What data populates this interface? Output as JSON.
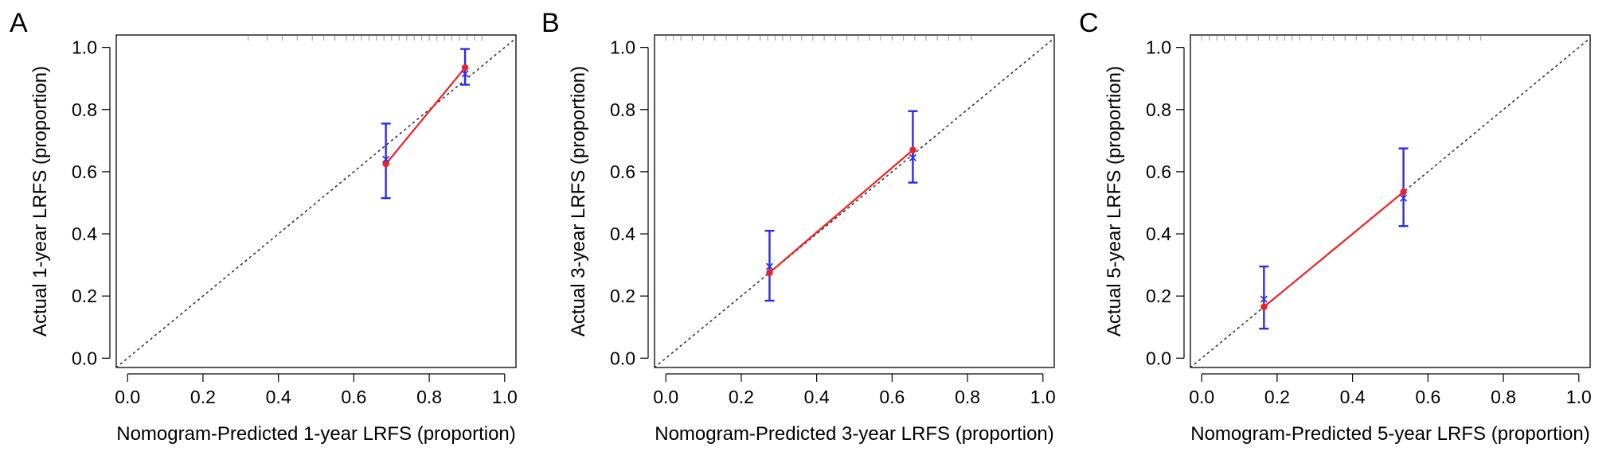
{
  "chart_data": [
    {
      "panel_label": "A",
      "type": "scatter",
      "xlabel": "Nomogram-Predicted 1-year LRFS (proportion)",
      "ylabel": "Actual 1-year LRFS (proportion)",
      "xlim": [
        -0.03,
        1.03
      ],
      "ylim": [
        -0.03,
        1.04
      ],
      "xticks": [
        "0.0",
        "0.2",
        "0.4",
        "0.6",
        "0.8",
        "1.0"
      ],
      "yticks": [
        "0.0",
        "0.2",
        "0.4",
        "0.6",
        "0.8",
        "1.0"
      ],
      "reference_line": {
        "style": "dotted",
        "from": [
          -0.03,
          -0.03
        ],
        "to": [
          1.03,
          1.03
        ],
        "color": "#333333"
      },
      "observed": {
        "color": "#ee2222",
        "x": [
          0.685,
          0.895
        ],
        "y": [
          0.625,
          0.935
        ]
      },
      "error_bars": {
        "color": "#2a2aee",
        "x": [
          0.685,
          0.895
        ],
        "lower": [
          0.515,
          0.88
        ],
        "upper": [
          0.755,
          0.995
        ]
      },
      "bias_corrected": {
        "marker": "x",
        "color": "#2a2aee",
        "x": [
          0.685,
          0.895
        ],
        "y": [
          0.64,
          0.915
        ]
      },
      "rug": [
        0.32,
        0.37,
        0.41,
        0.45,
        0.49,
        0.52,
        0.55,
        0.58,
        0.6,
        0.62,
        0.64,
        0.66,
        0.68,
        0.7,
        0.72,
        0.74,
        0.76,
        0.78,
        0.8,
        0.82,
        0.84,
        0.86,
        0.88,
        0.9,
        0.92,
        0.94
      ]
    },
    {
      "panel_label": "B",
      "type": "scatter",
      "xlabel": "Nomogram-Predicted 3-year LRFS (proportion)",
      "ylabel": "Actual 3-year LRFS (proportion)",
      "xlim": [
        -0.03,
        1.03
      ],
      "ylim": [
        -0.03,
        1.04
      ],
      "xticks": [
        "0.0",
        "0.2",
        "0.4",
        "0.6",
        "0.8",
        "1.0"
      ],
      "yticks": [
        "0.0",
        "0.2",
        "0.4",
        "0.6",
        "0.8",
        "1.0"
      ],
      "reference_line": {
        "style": "dotted",
        "from": [
          -0.03,
          -0.03
        ],
        "to": [
          1.03,
          1.03
        ],
        "color": "#333333"
      },
      "observed": {
        "color": "#ee2222",
        "x": [
          0.275,
          0.655
        ],
        "y": [
          0.275,
          0.67
        ]
      },
      "error_bars": {
        "color": "#2a2aee",
        "x": [
          0.275,
          0.655
        ],
        "lower": [
          0.185,
          0.565
        ],
        "upper": [
          0.41,
          0.795
        ]
      },
      "bias_corrected": {
        "marker": "x",
        "color": "#2a2aee",
        "x": [
          0.275,
          0.655
        ],
        "y": [
          0.295,
          0.645
        ]
      },
      "rug": [
        0.0,
        0.02,
        0.04,
        0.07,
        0.1,
        0.13,
        0.16,
        0.19,
        0.22,
        0.25,
        0.27,
        0.29,
        0.31,
        0.33,
        0.36,
        0.39,
        0.42,
        0.45,
        0.48,
        0.51,
        0.54,
        0.57,
        0.6,
        0.63,
        0.66,
        0.69,
        0.72,
        0.75,
        0.78,
        0.81
      ]
    },
    {
      "panel_label": "C",
      "type": "scatter",
      "xlabel": "Nomogram-Predicted 5-year LRFS (proportion)",
      "ylabel": "Actual 5-year LRFS (proportion)",
      "xlim": [
        -0.03,
        1.03
      ],
      "ylim": [
        -0.03,
        1.04
      ],
      "xticks": [
        "0.0",
        "0.2",
        "0.4",
        "0.6",
        "0.8",
        "1.0"
      ],
      "yticks": [
        "0.0",
        "0.2",
        "0.4",
        "0.6",
        "0.8",
        "1.0"
      ],
      "reference_line": {
        "style": "dotted",
        "from": [
          -0.03,
          -0.03
        ],
        "to": [
          1.03,
          1.03
        ],
        "color": "#333333"
      },
      "observed": {
        "color": "#ee2222",
        "x": [
          0.165,
          0.535
        ],
        "y": [
          0.165,
          0.535
        ]
      },
      "error_bars": {
        "color": "#2a2aee",
        "x": [
          0.165,
          0.535
        ],
        "lower": [
          0.095,
          0.425
        ],
        "upper": [
          0.295,
          0.675
        ]
      },
      "bias_corrected": {
        "marker": "x",
        "color": "#2a2aee",
        "x": [
          0.165,
          0.535
        ],
        "y": [
          0.19,
          0.515
        ]
      },
      "rug": [
        0.0,
        0.02,
        0.04,
        0.06,
        0.09,
        0.12,
        0.15,
        0.18,
        0.2,
        0.22,
        0.24,
        0.26,
        0.29,
        0.32,
        0.35,
        0.38,
        0.41,
        0.44,
        0.47,
        0.5,
        0.53,
        0.56,
        0.59,
        0.62,
        0.65,
        0.68,
        0.71,
        0.74
      ]
    }
  ]
}
